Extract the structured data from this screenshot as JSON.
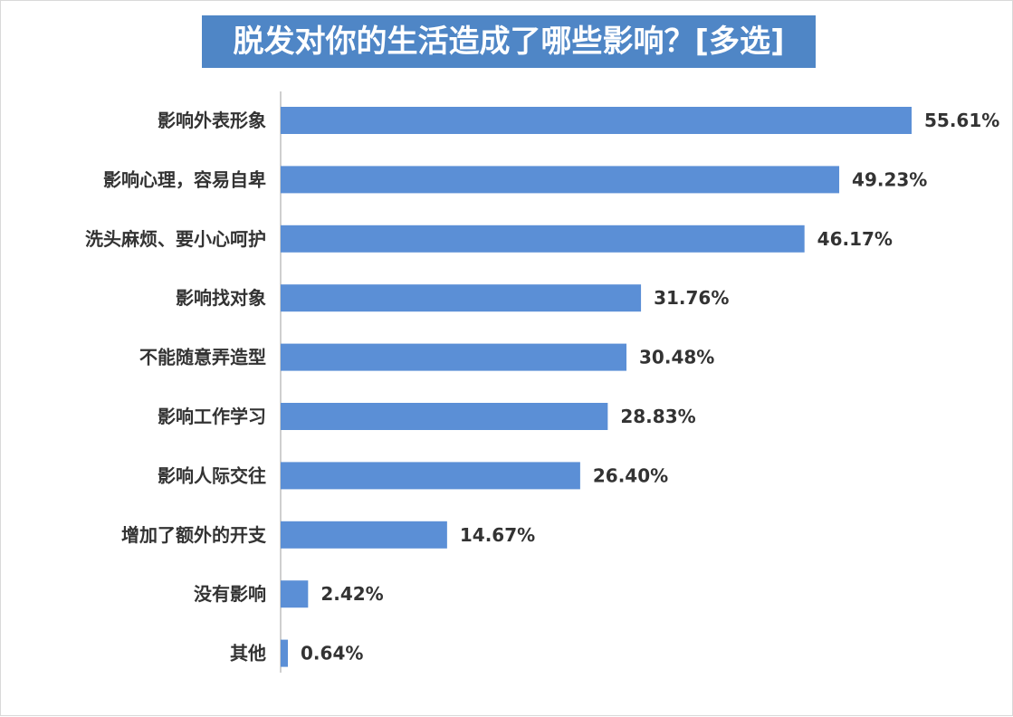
{
  "chart_data": {
    "type": "bar",
    "orientation": "horizontal",
    "title": "脱发对你的生活造成了哪些影响？[多选]",
    "categories": [
      "影响外表形象",
      "影响心理，容易自卑",
      "洗头麻烦、要小心呵护",
      "影响找对象",
      "不能随意弄造型",
      "影响工作学习",
      "影响人际交往",
      "增加了额外的开支",
      "没有影响",
      "其他"
    ],
    "values": [
      55.61,
      49.23,
      46.17,
      31.76,
      30.48,
      28.83,
      26.4,
      14.67,
      2.42,
      0.64
    ],
    "value_labels": [
      "55.61%",
      "49.23%",
      "46.17%",
      "31.76%",
      "30.48%",
      "28.83%",
      "26.40%",
      "14.67%",
      "2.42%",
      "0.64%"
    ],
    "xlim": [
      0,
      55.61
    ],
    "grid": false,
    "bar_color": "#5b8fd6",
    "title_bg": "#4f86c6"
  }
}
